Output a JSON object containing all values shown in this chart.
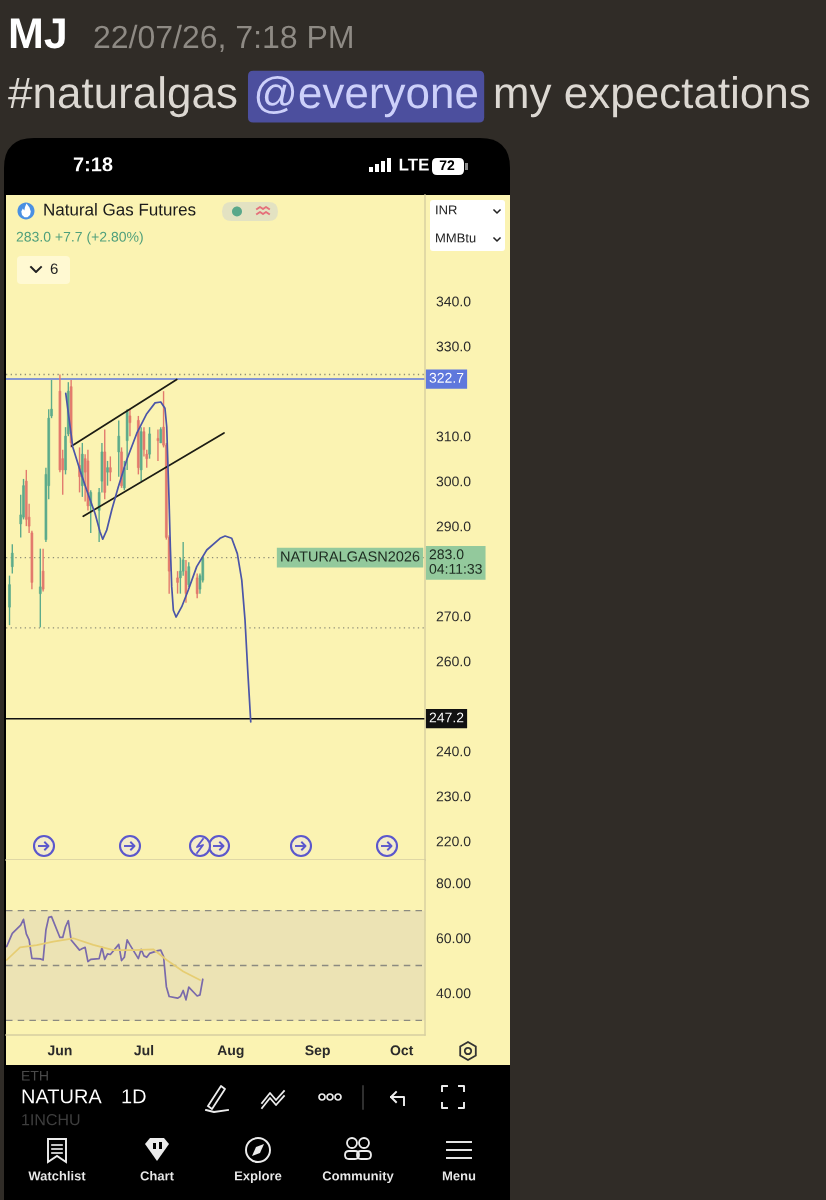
{
  "chart_data": [
    {
      "type": "candlestick",
      "title": "Natural Gas Futures",
      "subtitle": "283.0 +7.7 (+2.80%)",
      "x": [
        "2026-05-14",
        "2026-05-15",
        "2026-05-18",
        "2026-05-19",
        "2026-05-20",
        "2026-05-21",
        "2026-05-22",
        "2026-05-25",
        "2026-05-26",
        "2026-05-27",
        "2026-05-28",
        "2026-05-29",
        "2026-06-01",
        "2026-06-02",
        "2026-06-03",
        "2026-06-04",
        "2026-06-05",
        "2026-06-08",
        "2026-06-09",
        "2026-06-10",
        "2026-06-11",
        "2026-06-12",
        "2026-06-15",
        "2026-06-16",
        "2026-06-17",
        "2026-06-18",
        "2026-06-19",
        "2026-06-22",
        "2026-06-23",
        "2026-06-24",
        "2026-06-25",
        "2026-06-26",
        "2026-06-29",
        "2026-06-30",
        "2026-07-01",
        "2026-07-02",
        "2026-07-03",
        "2026-07-06",
        "2026-07-07",
        "2026-07-08",
        "2026-07-09",
        "2026-07-10",
        "2026-07-13",
        "2026-07-14",
        "2026-07-15",
        "2026-07-16",
        "2026-07-17",
        "2026-07-20",
        "2026-07-21",
        "2026-07-22"
      ],
      "ohlc": [
        [
          272,
          279,
          268,
          277
        ],
        [
          281,
          286,
          279.5,
          284
        ],
        [
          290.5,
          297,
          287.5,
          292.5
        ],
        [
          292,
          300.5,
          291.5,
          299
        ],
        [
          300,
          302.5,
          290,
          291.5
        ],
        [
          292,
          295,
          288.5,
          290
        ],
        [
          288.5,
          289,
          276,
          277.5
        ],
        [
          275,
          285,
          267.5,
          276.5
        ],
        [
          280,
          285,
          275.5,
          276
        ],
        [
          287,
          303,
          286.5,
          301.5
        ],
        [
          299,
          316,
          296,
          314
        ],
        [
          314.5,
          322.5,
          314,
          316
        ],
        [
          320,
          323.7,
          302,
          302.5
        ],
        [
          305,
          307,
          297,
          302.5
        ],
        [
          302.5,
          312,
          301.5,
          310
        ],
        [
          310.5,
          322,
          310,
          320
        ],
        [
          321,
          322.5,
          307.5,
          308.5
        ],
        [
          303.5,
          307.5,
          297.5,
          301
        ],
        [
          299,
          308.5,
          296.5,
          306
        ],
        [
          305,
          306,
          295.5,
          302
        ],
        [
          304.5,
          307,
          293.5,
          294.5
        ],
        [
          294.5,
          298,
          288.5,
          297.5
        ],
        [
          293.5,
          298.5,
          286.5,
          297.5
        ],
        [
          300,
          308.5,
          297.5,
          306.5
        ],
        [
          306.5,
          311.5,
          296,
          297.5
        ],
        [
          302,
          304.5,
          299,
          303
        ],
        [
          303,
          305.5,
          300,
          302
        ],
        [
          306.5,
          313.5,
          301,
          310
        ],
        [
          306.5,
          307.5,
          298.5,
          299
        ],
        [
          298.5,
          304.5,
          298,
          303
        ],
        [
          309,
          316,
          302.5,
          315.5
        ],
        [
          314.5,
          316,
          310,
          313
        ],
        [
          313.5,
          314.5,
          301.5,
          303
        ],
        [
          302.5,
          312,
          300,
          311
        ],
        [
          311,
          312,
          305.5,
          307
        ],
        [
          306,
          307,
          303,
          305
        ],
        [
          306,
          312,
          305,
          310.5
        ],
        [
          309.5,
          311.5,
          304.5,
          309
        ],
        [
          308.5,
          312,
          308.5,
          311.5
        ],
        [
          312,
          320,
          307.5,
          308
        ],
        [
          308,
          308.5,
          287,
          287.5
        ],
        [
          287.5,
          288,
          275,
          280
        ],
        [
          278.5,
          280,
          275,
          277.5
        ],
        [
          278.5,
          283,
          275,
          280
        ],
        [
          280,
          286.5,
          279,
          282.5
        ],
        [
          280,
          282.5,
          273,
          275
        ],
        [
          277,
          282,
          276.5,
          281
        ],
        [
          278.5,
          279.5,
          274,
          275
        ],
        [
          276,
          279.5,
          275,
          279
        ],
        [
          278,
          283,
          277.5,
          283
        ]
      ],
      "colors": [
        "#5dab8b",
        "#5dab8b",
        "#5dab8b",
        "#5dab8b",
        "#e27a6d",
        "#e27a6d",
        "#e27a6d",
        "#5dab8b",
        "#e27a6d",
        "#5dab8b",
        "#5dab8b",
        "#5dab8b",
        "#e27a6d",
        "#e27a6d",
        "#5dab8b",
        "#5dab8b",
        "#e27a6d",
        "#e27a6d",
        "#5dab8b",
        "#e27a6d",
        "#e27a6d",
        "#5dab8b",
        "#5dab8b",
        "#5dab8b",
        "#e27a6d",
        "#5dab8b",
        "#e27a6d",
        "#5dab8b",
        "#e27a6d",
        "#5dab8b",
        "#5dab8b",
        "#e27a6d",
        "#e27a6d",
        "#5dab8b",
        "#e27a6d",
        "#e27a6d",
        "#5dab8b",
        "#e27a6d",
        "#5dab8b",
        "#e27a6d",
        "#e27a6d",
        "#e27a6d",
        "#e27a6d",
        "#5dab8b",
        "#5dab8b",
        "#e27a6d",
        "#5dab8b",
        "#e27a6d",
        "#5dab8b",
        "#5dab8b"
      ],
      "series": [
        {
          "type": "line",
          "x": [
            "2026-06-05T05:00",
            "2026-07-12T17:00"
          ],
          "values": [
            307.8,
            322.6
          ],
          "color": "#1c1c14"
        },
        {
          "type": "line",
          "x": [
            "2026-06-09T08:00",
            "2026-07-29T14:00"
          ],
          "values": [
            292.2,
            310.7
          ],
          "color": "#1c1c14"
        },
        {
          "type": "line",
          "x": [
            "2026-06-03T02:00",
            "2026-06-05T14:00",
            "2026-06-08T04:00",
            "2026-06-10T19:00",
            "2026-06-13T13:00",
            "2026-06-15T08:00",
            "2026-06-16T07:00",
            "2026-06-17T17:00",
            "2026-06-19T12:00",
            "2026-06-21T20:00",
            "2026-06-24T20:00",
            "2026-06-28T10:00",
            "2026-07-02",
            "2026-07-04T23:00",
            "2026-07-07",
            "2026-07-08T12:00",
            "2026-07-09T03:00",
            "2026-07-09T12:00",
            "2026-07-09T23:00",
            "2026-07-10T10:00",
            "2026-07-10T22:00",
            "2026-07-11T12:00",
            "2026-07-12T11:00",
            "2026-07-14T12:00",
            "2026-07-16T20:00",
            "2026-07-19T20:00",
            "2026-07-23T10:00",
            "2026-07-28T04:00",
            "2026-07-29T23:00",
            "2026-08-01T08:00",
            "2026-08-03T08:00",
            "2026-08-04T22:00",
            "2026-08-06T02:00",
            "2026-08-07T01:00",
            "2026-08-08T03:00"
          ],
          "values": [
            319.5,
            307.6,
            302.4,
            297.6,
            292.8,
            288.7,
            287.1,
            289.1,
            293.6,
            298.7,
            304.7,
            310.6,
            315.0,
            317.4,
            317.6,
            316.2,
            312.1,
            304.7,
            295.8,
            285.4,
            276.5,
            271.3,
            269.8,
            272.1,
            275.8,
            281.0,
            284.7,
            287.3,
            287.8,
            287.3,
            283.9,
            278.0,
            269.1,
            258.0,
            246.5
          ],
          "color": "#4b55a8"
        }
      ],
      "xlim": [
        "2026-05-12T18:00",
        "2026-10-09T08:00"
      ],
      "ylim": [
        215.8,
        363.6
      ],
      "yticks": [
        {
          "value": 220,
          "label": "220.0"
        },
        {
          "value": 230,
          "label": "230.0"
        },
        {
          "value": 240,
          "label": "240.0"
        },
        {
          "value": 260,
          "label": "260.0"
        },
        {
          "value": 270,
          "label": "270.0"
        },
        {
          "value": 290,
          "label": "290.0"
        },
        {
          "value": 300,
          "label": "300.0"
        },
        {
          "value": 310,
          "label": "310.0"
        },
        {
          "value": 330,
          "label": "330.0"
        },
        {
          "value": 340,
          "label": "340.0"
        }
      ],
      "tick_labels": "y",
      "ref_lines": [
        {
          "axis": "y",
          "value": 322.7,
          "label": "322.7",
          "color": "#5f78dc",
          "line_style": "solid"
        },
        {
          "axis": "y",
          "value": 247.2,
          "label": "247.2",
          "color": "#111111",
          "line_style": "solid"
        },
        {
          "axis": "y",
          "value": 283.0,
          "label": "NATURALGASN2026",
          "color": "#8f8f78",
          "line_style": "dotted"
        },
        {
          "axis": "y",
          "value": 323.7,
          "color": "#8f8f78",
          "line_style": "dotted"
        },
        {
          "axis": "y",
          "value": 267.4,
          "color": "#8f8f78",
          "line_style": "dotted"
        }
      ],
      "annotations": [
        "MJ",
        "22/07/26, 7:18 PM",
        "#naturalgas",
        "@everyone",
        "my expectations",
        "7:18",
        "LTE",
        "72",
        "INR",
        "MMBtu",
        "6",
        "283.0",
        "04:11:33",
        "ETH",
        "NATURA",
        "1INCHU",
        "1D",
        "Watchlist",
        "Chart",
        "Explore",
        "Community",
        "Menu"
      ]
    },
    {
      "type": "line",
      "x": [
        "2026-05-13",
        "2026-05-14",
        "2026-05-15",
        "2026-05-18",
        "2026-05-19",
        "2026-05-20",
        "2026-05-21",
        "2026-05-22",
        "2026-05-25",
        "2026-05-26",
        "2026-05-27",
        "2026-05-28",
        "2026-05-29",
        "2026-06-01",
        "2026-06-02",
        "2026-06-03",
        "2026-06-04",
        "2026-06-05",
        "2026-06-08",
        "2026-06-09",
        "2026-06-10",
        "2026-06-11",
        "2026-06-12",
        "2026-06-15",
        "2026-06-16",
        "2026-06-17",
        "2026-06-18",
        "2026-06-19",
        "2026-06-22",
        "2026-06-23",
        "2026-06-24",
        "2026-06-25",
        "2026-06-26",
        "2026-06-29",
        "2026-06-30",
        "2026-07-01",
        "2026-07-02",
        "2026-07-03",
        "2026-07-06",
        "2026-07-07",
        "2026-07-08",
        "2026-07-09",
        "2026-07-10",
        "2026-07-13",
        "2026-07-14",
        "2026-07-15",
        "2026-07-16",
        "2026-07-17",
        "2026-07-20",
        "2026-07-21",
        "2026-07-22"
      ],
      "series": [
        {
          "values": [
            56.9,
            59.3,
            61.7,
            64.7,
            66.8,
            61.5,
            59.3,
            52.6,
            52.4,
            52.0,
            62.9,
            67.5,
            67.8,
            60.2,
            60.2,
            64.1,
            66.3,
            59.3,
            55.6,
            56.2,
            56.6,
            51.4,
            52.2,
            52.5,
            56.6,
            52.2,
            54.2,
            54.0,
            57.7,
            51.8,
            53.0,
            59.3,
            57.5,
            52.5,
            55.9,
            53.5,
            53.0,
            54.4,
            55.4,
            55.6,
            53.2,
            42.3,
            38.7,
            38.1,
            38.7,
            40.9,
            37.5,
            42.1,
            38.9,
            39.3,
            45.0
          ],
          "color": "#7a6aab"
        },
        {
          "x": [
            "2026-05-13",
            "2026-05-17T18:00",
            "2026-05-23T17:00",
            "2026-05-29T15:00",
            "2026-06-05T19:00",
            "2026-06-12T22:00",
            "2026-06-20T01:00",
            "2026-06-27T05:00",
            "2026-07-04T08:00",
            "2026-07-09T03:00",
            "2026-07-15T01:00",
            "2026-07-21"
          ],
          "values": [
            52.0,
            56.6,
            57.4,
            58.7,
            59.9,
            57.5,
            55.6,
            55.6,
            55.9,
            52.0,
            47.8,
            44.7
          ],
          "color": "#e6cd72"
        }
      ],
      "xlim": [
        "2026-05-12T18:00",
        "2026-10-09T08:00"
      ],
      "xticks": [
        {
          "value": "2026-06-01",
          "label": "Jun"
        },
        {
          "value": "2026-07-01",
          "label": "Jul"
        },
        {
          "value": "2026-08-01",
          "label": "Aug"
        },
        {
          "value": "2026-09-01",
          "label": "Sep"
        },
        {
          "value": "2026-10-01",
          "label": "Oct"
        }
      ],
      "ylim": [
        24.7,
        88.4
      ],
      "yticks": [
        {
          "value": 40,
          "label": "40.00"
        },
        {
          "value": 60,
          "label": "60.00"
        },
        {
          "value": 80,
          "label": "80.00"
        }
      ],
      "ref_lines": [
        {
          "axis": "y",
          "value": 70,
          "color": "#8b8a80",
          "line_style": "dashed"
        },
        {
          "axis": "y",
          "value": 50,
          "color": "#8b8a80",
          "line_style": "dashed"
        },
        {
          "axis": "y",
          "value": 30,
          "color": "#8b8a80",
          "line_style": "dashed"
        }
      ],
      "bands": [
        {
          "axis": "y",
          "from": 30,
          "to": 70,
          "color": "#ece3b4"
        }
      ]
    }
  ]
}
